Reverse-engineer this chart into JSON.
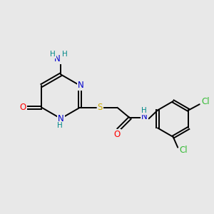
{
  "background_color": "#e8e8e8",
  "bond_color": "#000000",
  "atom_colors": {
    "N": "#0000cc",
    "O": "#ff0000",
    "S": "#ccaa00",
    "Cl": "#33bb33",
    "H": "#008888"
  },
  "font_size": 8.5,
  "fig_width": 3.0,
  "fig_height": 3.0,
  "dpi": 100,
  "lw": 1.4
}
